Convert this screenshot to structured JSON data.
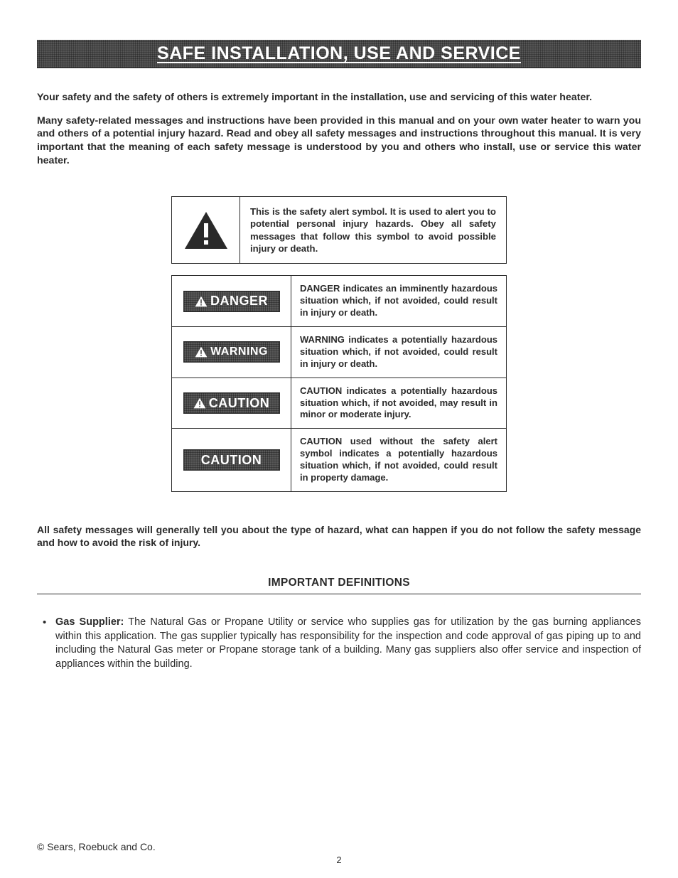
{
  "colors": {
    "page_bg": "#ffffff",
    "text": "#2a2a2a",
    "bar_bg": "#555555",
    "signal_bg": "#595959",
    "border": "#2a2a2a",
    "white": "#ffffff"
  },
  "header": {
    "title": "SAFE INSTALLATION, USE AND SERVICE"
  },
  "intro": {
    "p1": "Your safety and the safety of others is extremely important in the installation, use and servicing of this water heater.",
    "p2": "Many safety-related messages and instructions have been provided in this manual and on your own water heater to warn you and others of a potential injury hazard.  Read and obey all safety messages and instructions throughout this manual.  It is very important that the meaning of each safety message is understood by you and others who install, use or service this water heater."
  },
  "alert_symbol": {
    "text": "This is the safety alert symbol.  It is used to alert you to potential personal injury hazards. Obey all safety messages that follow this symbol to avoid possible injury or death."
  },
  "signals": [
    {
      "label": "DANGER",
      "has_icon": true,
      "size": "lg",
      "desc": "DANGER indicates an imminently hazardous situation which, if not avoided, could result in injury or death."
    },
    {
      "label": "WARNING",
      "has_icon": true,
      "size": "md",
      "desc": "WARNING indicates a potentially hazardous situation which, if not avoided, could result in injury or death."
    },
    {
      "label": "CAUTION",
      "has_icon": true,
      "size": "lg",
      "desc": "CAUTION indicates a potentially hazardous situation which, if not avoided, may result in minor or moderate injury."
    },
    {
      "label": "CAUTION",
      "has_icon": false,
      "size": "lg",
      "desc": "CAUTION used without the safety alert symbol indicates a potentially hazardous situation which, if not avoided, could result in property damage."
    }
  ],
  "post_para": "All safety messages will generally tell you about the type of hazard, what can happen if you do not follow the safety message and how to avoid the risk of injury.",
  "definitions": {
    "heading": "IMPORTANT DEFINITIONS",
    "items": [
      {
        "term": "Gas Supplier:",
        "body": " The Natural Gas or Propane Utility or service who supplies gas for utilization by the gas burning appliances within this application. The gas supplier typically has responsibility for the inspection and code approval of gas piping up to and including the Natural Gas meter or Propane storage tank of a building. Many gas suppliers also offer service and inspection of appliances within the building."
      }
    ]
  },
  "footer": {
    "copyright": "© Sears, Roebuck and Co.",
    "page_number": "2"
  }
}
